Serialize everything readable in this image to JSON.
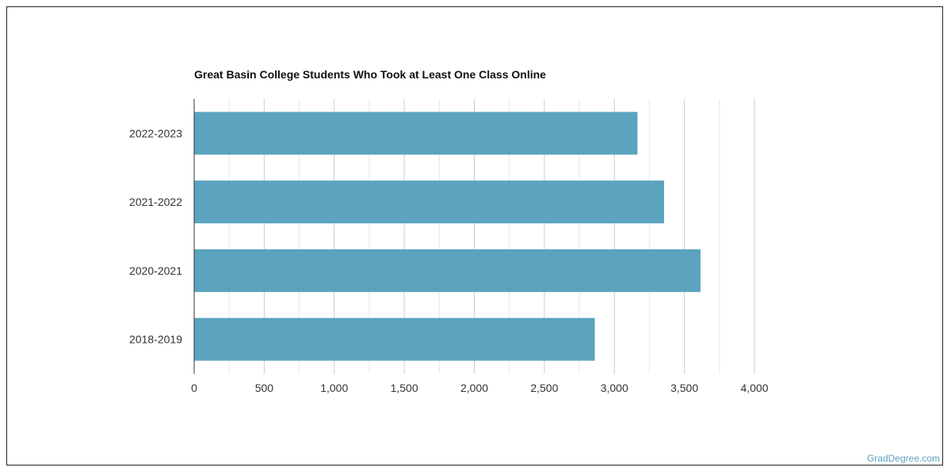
{
  "chart_data": {
    "type": "bar",
    "orientation": "horizontal",
    "title": "Great Basin College Students Who Took at Least One Class Online",
    "xlabel": "",
    "ylabel": "",
    "categories": [
      "2022-2023",
      "2021-2022",
      "2020-2021",
      "2018-2019"
    ],
    "values": [
      3165,
      3355,
      3615,
      2860
    ],
    "xlim": [
      0,
      4000
    ],
    "x_ticks": [
      0,
      500,
      1000,
      1500,
      2000,
      2500,
      3000,
      3500,
      4000
    ],
    "x_tick_labels": [
      "0",
      "500",
      "1,000",
      "1,500",
      "2,000",
      "2,500",
      "3,000",
      "3,500",
      "4,000"
    ],
    "grid": true,
    "legend": "none",
    "bar_color": "#5ba3bf",
    "grid_color": "#cccccc"
  },
  "footer": {
    "watermark": "GradDegree.com"
  }
}
